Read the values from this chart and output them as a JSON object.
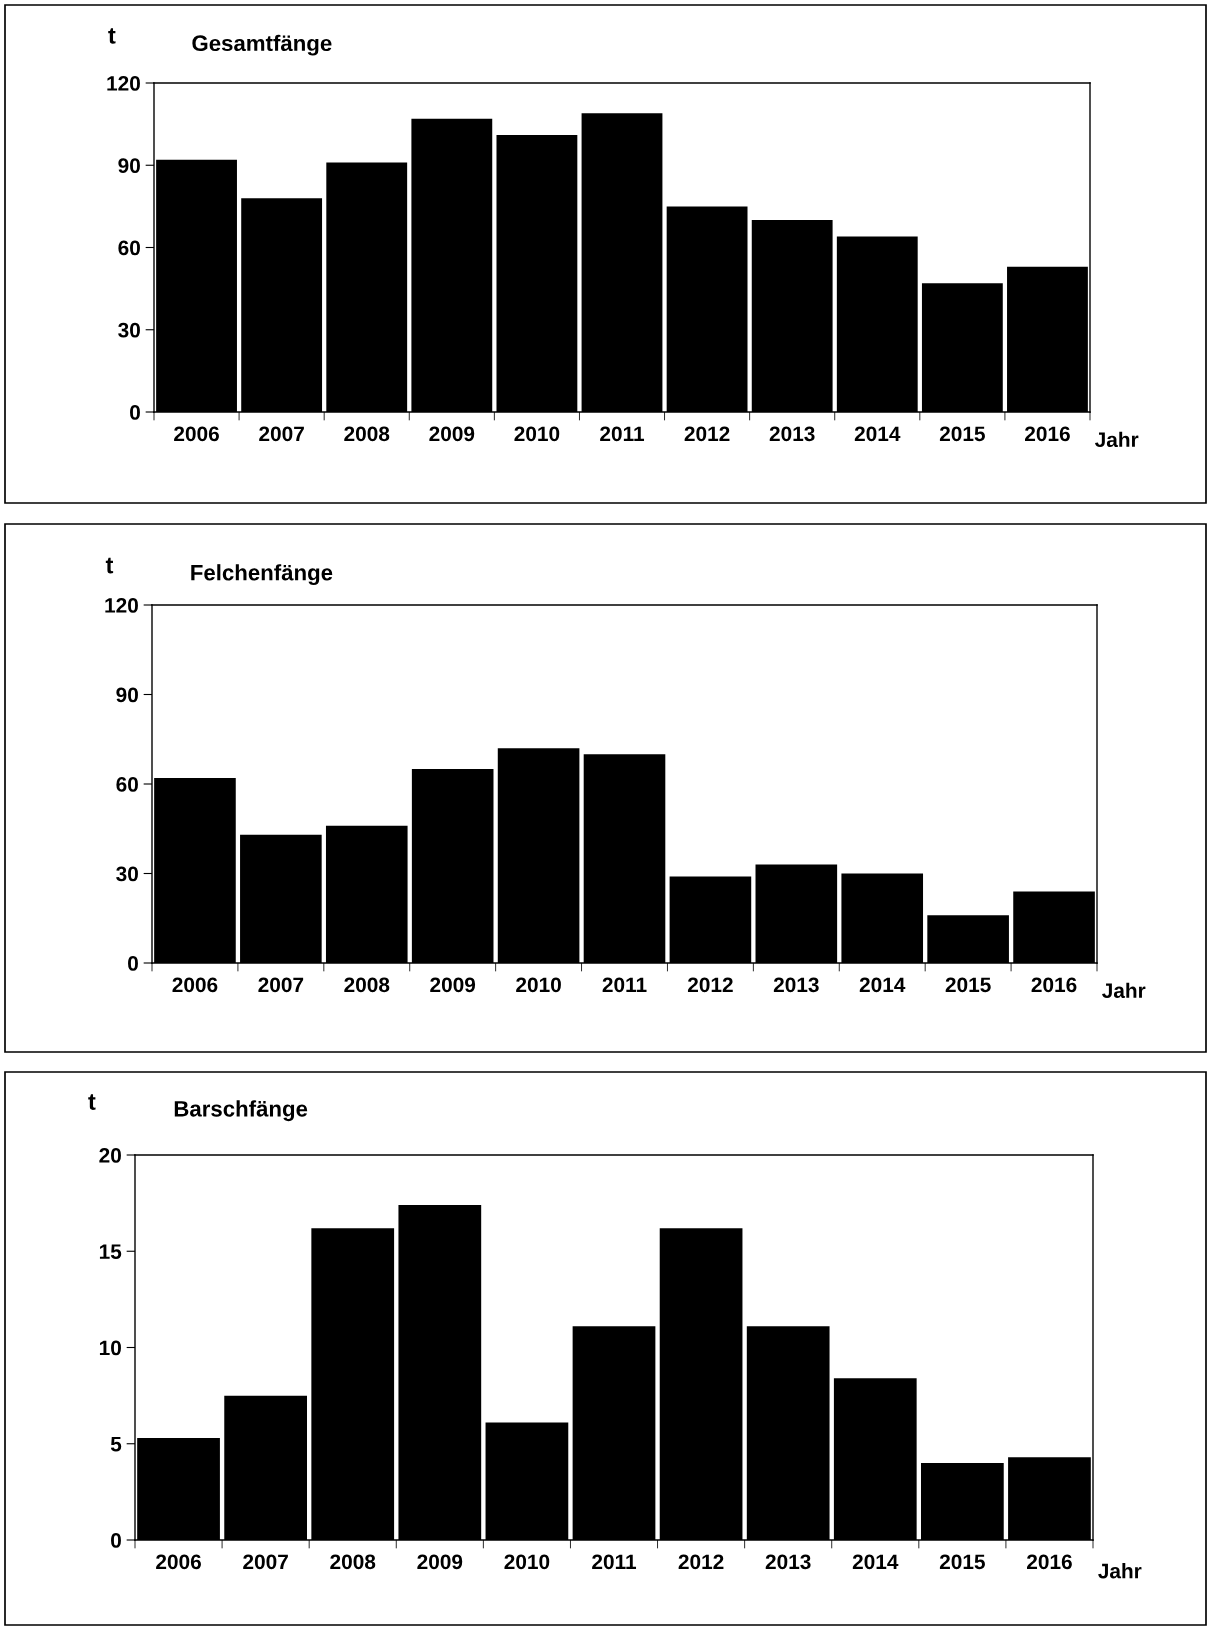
{
  "chart_data": [
    {
      "type": "bar",
      "title": "Gesamtfänge",
      "ylabel": "t",
      "xlabel": "Jahr",
      "categories": [
        "2006",
        "2007",
        "2008",
        "2009",
        "2010",
        "2011",
        "2012",
        "2013",
        "2014",
        "2015",
        "2016"
      ],
      "series": [
        {
          "color": "#000000",
          "values": [
            92,
            78,
            91,
            107,
            101,
            109,
            75,
            70,
            64,
            47,
            53
          ]
        }
      ],
      "ylim": [
        0,
        120
      ],
      "yticks": [
        0,
        30,
        60,
        90,
        120
      ],
      "grid": false,
      "legend": false
    },
    {
      "type": "bar",
      "title": "Felchenfänge",
      "ylabel": "t",
      "xlabel": "Jahr",
      "categories": [
        "2006",
        "2007",
        "2008",
        "2009",
        "2010",
        "2011",
        "2012",
        "2013",
        "2014",
        "2015",
        "2016"
      ],
      "series": [
        {
          "color": "#000000",
          "values": [
            62,
            43,
            46,
            65,
            72,
            70,
            29,
            33,
            30,
            16,
            24
          ]
        }
      ],
      "ylim": [
        0,
        120
      ],
      "yticks": [
        0,
        30,
        60,
        90,
        120
      ],
      "grid": false,
      "legend": false
    },
    {
      "type": "bar",
      "title": "Barschfänge",
      "ylabel": "t",
      "xlabel": "Jahr",
      "categories": [
        "2006",
        "2007",
        "2008",
        "2009",
        "2010",
        "2011",
        "2012",
        "2013",
        "2014",
        "2015",
        "2016"
      ],
      "series": [
        {
          "color": "#000000",
          "values": [
            5.3,
            7.5,
            16.2,
            17.4,
            6.1,
            11.1,
            16.2,
            11.1,
            8.4,
            4.0,
            4.3
          ]
        }
      ],
      "ylim": [
        0,
        20
      ],
      "yticks": [
        0,
        5,
        10,
        15,
        20
      ],
      "grid": false,
      "legend": false
    }
  ]
}
